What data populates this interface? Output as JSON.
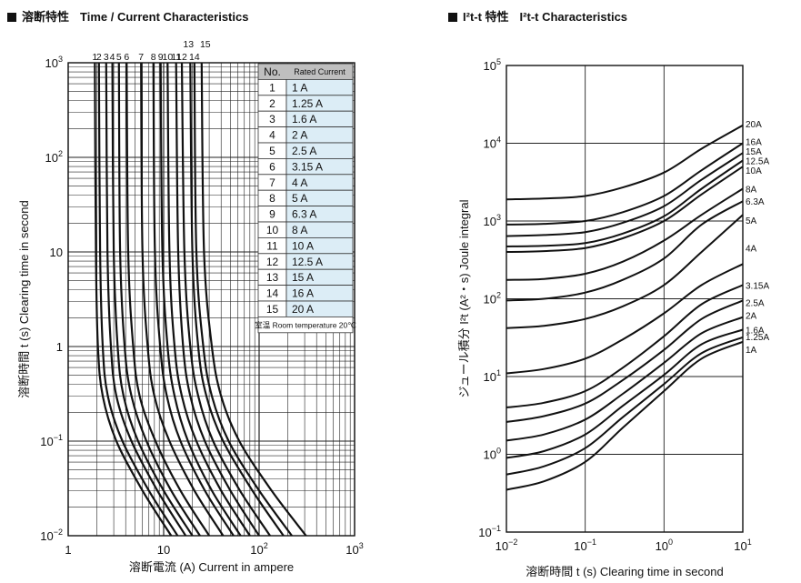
{
  "left_title": {
    "jp": "溶断特性",
    "en": "Time / Current Characteristics"
  },
  "right_title": {
    "jp": "I²t-t 特性",
    "en": "I²t-t Characteristics"
  },
  "chart_data": [
    {
      "type": "line",
      "title": "溶断特性 Time / Current Characteristics",
      "xlabel": "溶断電流 (A)  Current in ampere",
      "ylabel": "溶断時間 t (s)  Clearing time in second",
      "x_scale": "log",
      "y_scale": "log",
      "xlim": [
        1,
        1000
      ],
      "ylim": [
        0.01,
        1000
      ],
      "x_tick_labels": [
        "1",
        "10",
        "10²",
        "10³"
      ],
      "y_tick_labels": [
        "10⁻²",
        "10⁻¹",
        "1",
        "10",
        "10²",
        "10³"
      ],
      "grid": true,
      "curve_labels": [
        "1",
        "2",
        "3",
        "4",
        "5",
        "6",
        "7",
        "8",
        "9",
        "10",
        "11",
        "12",
        "13",
        "14",
        "15"
      ],
      "table": {
        "headers": [
          "No.",
          "Rated Current"
        ],
        "rows": [
          [
            "1",
            "1 A"
          ],
          [
            "2",
            "1.25 A"
          ],
          [
            "3",
            "1.6 A"
          ],
          [
            "4",
            "2 A"
          ],
          [
            "5",
            "2.5 A"
          ],
          [
            "6",
            "3.15 A"
          ],
          [
            "7",
            "4 A"
          ],
          [
            "8",
            "5 A"
          ],
          [
            "9",
            "6.3 A"
          ],
          [
            "10",
            "8 A"
          ],
          [
            "11",
            "10 A"
          ],
          [
            "12",
            "12.5 A"
          ],
          [
            "13",
            "15 A"
          ],
          [
            "14",
            "16 A"
          ],
          [
            "15",
            "20 A"
          ]
        ],
        "footer": "室温 Room temperature 20℃"
      },
      "series": [
        {
          "rated": 1.0,
          "points": [
            [
              1.9,
              1000
            ],
            [
              1.95,
              10
            ],
            [
              2.05,
              1
            ],
            [
              2.3,
              0.3
            ],
            [
              3.2,
              0.1
            ],
            [
              6,
              0.03
            ],
            [
              12,
              0.01
            ]
          ]
        },
        {
          "rated": 1.25,
          "points": [
            [
              2.1,
              1000
            ],
            [
              2.16,
              10
            ],
            [
              2.3,
              1
            ],
            [
              2.6,
              0.3
            ],
            [
              3.7,
              0.1
            ],
            [
              7,
              0.03
            ],
            [
              14,
              0.01
            ]
          ]
        },
        {
          "rated": 1.6,
          "points": [
            [
              2.5,
              1000
            ],
            [
              2.58,
              10
            ],
            [
              2.8,
              1
            ],
            [
              3.2,
              0.3
            ],
            [
              4.6,
              0.1
            ],
            [
              8.6,
              0.03
            ],
            [
              17,
              0.01
            ]
          ]
        },
        {
          "rated": 2.0,
          "points": [
            [
              2.9,
              1000
            ],
            [
              3.0,
              10
            ],
            [
              3.3,
              1
            ],
            [
              3.8,
              0.3
            ],
            [
              5.4,
              0.1
            ],
            [
              10,
              0.03
            ],
            [
              20,
              0.01
            ]
          ]
        },
        {
          "rated": 2.5,
          "points": [
            [
              3.4,
              1000
            ],
            [
              3.5,
              10
            ],
            [
              3.9,
              1
            ],
            [
              4.6,
              0.3
            ],
            [
              6.6,
              0.1
            ],
            [
              12,
              0.03
            ],
            [
              24,
              0.01
            ]
          ]
        },
        {
          "rated": 3.15,
          "points": [
            [
              4.1,
              1000
            ],
            [
              4.25,
              10
            ],
            [
              4.8,
              1
            ],
            [
              5.6,
              0.3
            ],
            [
              8.2,
              0.1
            ],
            [
              15,
              0.03
            ],
            [
              30,
              0.01
            ]
          ]
        },
        {
          "rated": 4.0,
          "points": [
            [
              5.8,
              1000
            ],
            [
              6.0,
              10
            ],
            [
              6.8,
              1
            ],
            [
              8.0,
              0.3
            ],
            [
              11.5,
              0.1
            ],
            [
              21,
              0.03
            ],
            [
              42,
              0.01
            ]
          ]
        },
        {
          "rated": 5.0,
          "points": [
            [
              7.8,
              1000
            ],
            [
              8.1,
              10
            ],
            [
              9.2,
              1
            ],
            [
              10.8,
              0.3
            ],
            [
              15,
              0.1
            ],
            [
              27,
              0.03
            ],
            [
              54,
              0.01
            ]
          ]
        },
        {
          "rated": 6.3,
          "points": [
            [
              9.3,
              1000
            ],
            [
              9.7,
              10
            ],
            [
              11,
              1
            ],
            [
              13,
              0.3
            ],
            [
              18,
              0.1
            ],
            [
              32,
              0.03
            ],
            [
              64,
              0.01
            ]
          ]
        },
        {
          "rated": 8.0,
          "points": [
            [
              11,
              1000
            ],
            [
              11.5,
              10
            ],
            [
              13,
              1
            ],
            [
              15.5,
              0.3
            ],
            [
              22,
              0.1
            ],
            [
              40,
              0.03
            ],
            [
              80,
              0.01
            ]
          ]
        },
        {
          "rated": 10.0,
          "points": [
            [
              13.5,
              1000
            ],
            [
              14.2,
              10
            ],
            [
              16,
              1
            ],
            [
              19,
              0.3
            ],
            [
              27,
              0.1
            ],
            [
              50,
              0.03
            ],
            [
              100,
              0.01
            ]
          ]
        },
        {
          "rated": 12.5,
          "points": [
            [
              15.5,
              1000
            ],
            [
              16.5,
              10
            ],
            [
              19,
              1
            ],
            [
              23,
              0.3
            ],
            [
              33,
              0.1
            ],
            [
              63,
              0.03
            ],
            [
              130,
              0.01
            ]
          ]
        },
        {
          "rated": 15.0,
          "points": [
            [
              19,
              1000
            ],
            [
              20,
              10
            ],
            [
              23,
              1
            ],
            [
              28,
              0.3
            ],
            [
              42,
              0.1
            ],
            [
              85,
              0.03
            ],
            [
              180,
              0.01
            ]
          ]
        },
        {
          "rated": 16.0,
          "points": [
            [
              21,
              1000
            ],
            [
              22,
              10
            ],
            [
              26,
              1
            ],
            [
              32,
              0.3
            ],
            [
              48,
              0.1
            ],
            [
              100,
              0.03
            ],
            [
              220,
              0.01
            ]
          ]
        },
        {
          "rated": 20.0,
          "points": [
            [
              25,
              1000
            ],
            [
              26.5,
              10
            ],
            [
              32,
              1
            ],
            [
              40,
              0.3
            ],
            [
              62,
              0.1
            ],
            [
              135,
              0.03
            ],
            [
              310,
              0.01
            ]
          ]
        }
      ]
    },
    {
      "type": "line",
      "title": "I²t-t Characteristics",
      "xlabel": "溶断時間 t (s)  Clearing time in second",
      "ylabel": "ジュール積分 I²t (A²・s) Joule integral",
      "x_scale": "log",
      "y_scale": "log",
      "xlim": [
        0.01,
        10
      ],
      "ylim": [
        0.1,
        100000
      ],
      "x_tick_labels": [
        "10⁻²",
        "10⁻¹",
        "10⁰",
        "10¹"
      ],
      "y_tick_labels": [
        "10⁻¹",
        "10⁰",
        "10¹",
        "10²",
        "10³",
        "10⁴",
        "10⁵"
      ],
      "grid": true,
      "series": [
        {
          "name": "1A",
          "points": [
            [
              0.01,
              0.35
            ],
            [
              0.03,
              0.45
            ],
            [
              0.1,
              0.8
            ],
            [
              0.3,
              2.2
            ],
            [
              1,
              6.5
            ],
            [
              3,
              17
            ],
            [
              10,
              28
            ]
          ]
        },
        {
          "name": "1.25A",
          "points": [
            [
              0.01,
              0.55
            ],
            [
              0.03,
              0.7
            ],
            [
              0.1,
              1.2
            ],
            [
              0.3,
              3.0
            ],
            [
              1,
              8
            ],
            [
              3,
              20
            ],
            [
              10,
              32
            ]
          ]
        },
        {
          "name": "1.6A",
          "points": [
            [
              0.01,
              0.9
            ],
            [
              0.03,
              1.1
            ],
            [
              0.1,
              1.8
            ],
            [
              0.3,
              4.2
            ],
            [
              1,
              10.5
            ],
            [
              3,
              26
            ],
            [
              10,
              40
            ]
          ]
        },
        {
          "name": "2A",
          "points": [
            [
              0.01,
              1.5
            ],
            [
              0.03,
              1.8
            ],
            [
              0.1,
              2.8
            ],
            [
              0.3,
              6
            ],
            [
              1,
              15
            ],
            [
              3,
              36
            ],
            [
              10,
              58
            ]
          ]
        },
        {
          "name": "2.5A",
          "points": [
            [
              0.01,
              2.6
            ],
            [
              0.03,
              3.1
            ],
            [
              0.1,
              4.5
            ],
            [
              0.3,
              9
            ],
            [
              1,
              22
            ],
            [
              3,
              55
            ],
            [
              10,
              95
            ]
          ]
        },
        {
          "name": "3.15A",
          "points": [
            [
              0.01,
              4
            ],
            [
              0.03,
              4.6
            ],
            [
              0.1,
              6.5
            ],
            [
              0.3,
              13
            ],
            [
              1,
              33
            ],
            [
              3,
              85
            ],
            [
              10,
              150
            ]
          ]
        },
        {
          "name": "4A",
          "points": [
            [
              0.01,
              11
            ],
            [
              0.03,
              12.5
            ],
            [
              0.1,
              17
            ],
            [
              0.3,
              30
            ],
            [
              1,
              65
            ],
            [
              3,
              150
            ],
            [
              10,
              280
            ]
          ]
        },
        {
          "name": "5A",
          "points": [
            [
              0.01,
              42
            ],
            [
              0.03,
              45
            ],
            [
              0.1,
              55
            ],
            [
              0.3,
              80
            ],
            [
              1,
              150
            ],
            [
              3,
              400
            ],
            [
              10,
              1200
            ]
          ]
        },
        {
          "name": "6.3A",
          "points": [
            [
              0.01,
              95
            ],
            [
              0.03,
              100
            ],
            [
              0.1,
              120
            ],
            [
              0.3,
              175
            ],
            [
              1,
              330
            ],
            [
              3,
              900
            ],
            [
              10,
              1800
            ]
          ]
        },
        {
          "name": "8A",
          "points": [
            [
              0.01,
              175
            ],
            [
              0.03,
              180
            ],
            [
              0.1,
              210
            ],
            [
              0.3,
              300
            ],
            [
              1,
              560
            ],
            [
              3,
              1200
            ],
            [
              10,
              2600
            ]
          ]
        },
        {
          "name": "10A",
          "points": [
            [
              0.01,
              400
            ],
            [
              0.03,
              410
            ],
            [
              0.1,
              450
            ],
            [
              0.3,
              600
            ],
            [
              1,
              1000
            ],
            [
              3,
              2200
            ],
            [
              10,
              5000
            ]
          ]
        },
        {
          "name": "12.5A",
          "points": [
            [
              0.01,
              470
            ],
            [
              0.03,
              480
            ],
            [
              0.1,
              520
            ],
            [
              0.3,
              690
            ],
            [
              1,
              1150
            ],
            [
              3,
              2600
            ],
            [
              10,
              6000
            ]
          ]
        },
        {
          "name": "15A",
          "points": [
            [
              0.01,
              640
            ],
            [
              0.03,
              660
            ],
            [
              0.1,
              720
            ],
            [
              0.3,
              950
            ],
            [
              1,
              1550
            ],
            [
              3,
              3400
            ],
            [
              10,
              7500
            ]
          ]
        },
        {
          "name": "16A",
          "points": [
            [
              0.01,
              900
            ],
            [
              0.03,
              920
            ],
            [
              0.1,
              1000
            ],
            [
              0.3,
              1300
            ],
            [
              1,
              2100
            ],
            [
              3,
              4500
            ],
            [
              10,
              10000
            ]
          ]
        },
        {
          "name": "20A",
          "points": [
            [
              0.01,
              1900
            ],
            [
              0.03,
              1950
            ],
            [
              0.1,
              2100
            ],
            [
              0.3,
              2700
            ],
            [
              1,
              4200
            ],
            [
              3,
              8500
            ],
            [
              10,
              17000
            ]
          ]
        }
      ]
    }
  ]
}
